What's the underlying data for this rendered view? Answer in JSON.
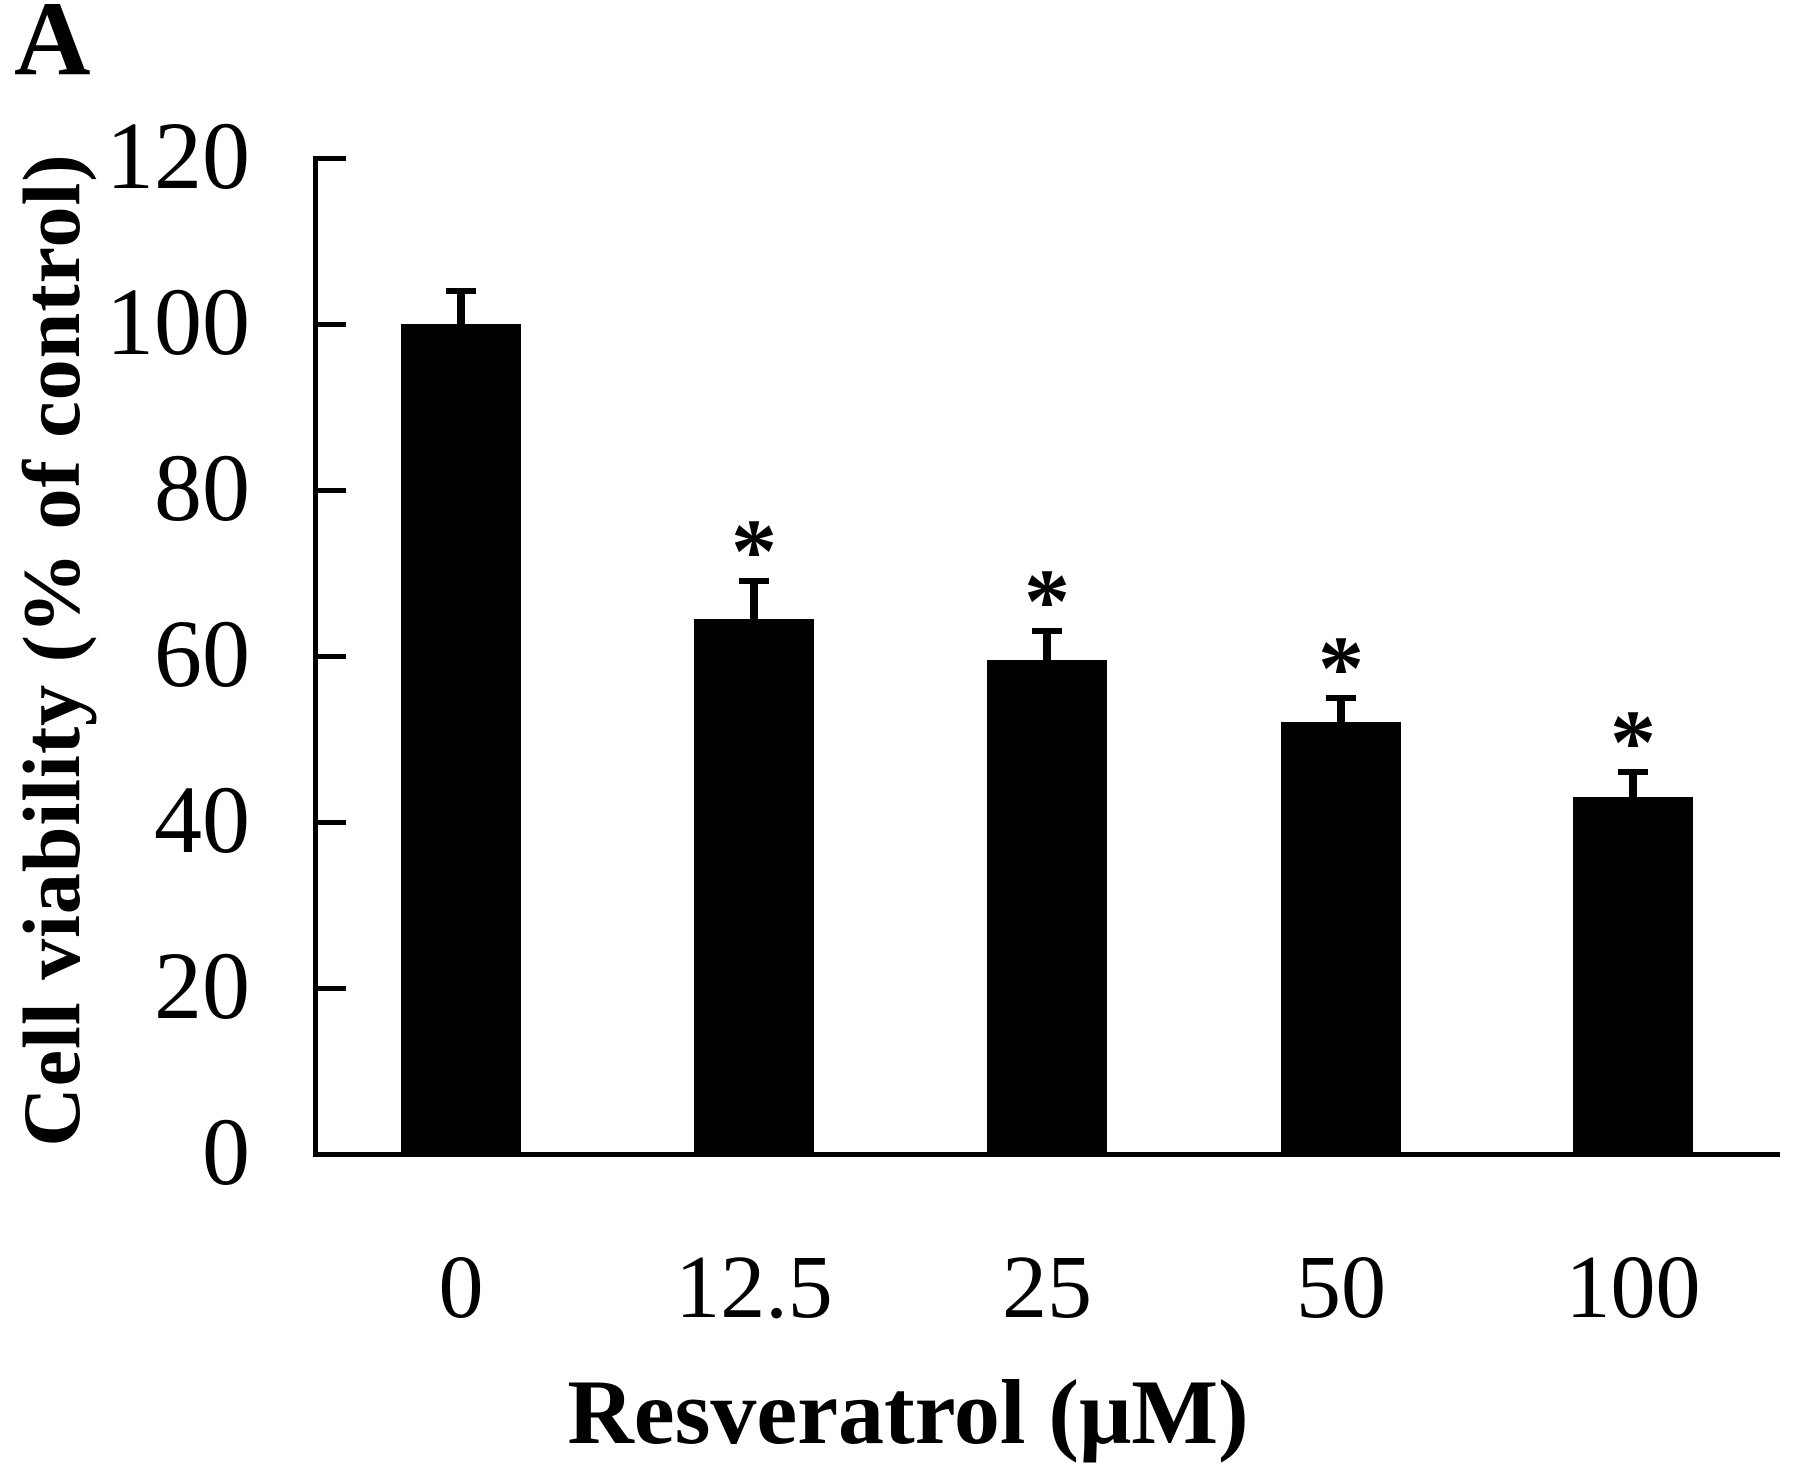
{
  "figure": {
    "panel_label": "A",
    "background": "#ffffff",
    "ink_color": "#000000"
  },
  "chart_data": {
    "type": "bar",
    "title": "",
    "panel_label": "A",
    "xlabel": "Resveratrol (μM)",
    "ylabel": "Cell viability (% of control)",
    "categories": [
      "0",
      "12.5",
      "25",
      "50",
      "100"
    ],
    "values": [
      100,
      64.5,
      59.5,
      52,
      43
    ],
    "error_bars_upper": [
      4,
      4.5,
      3.5,
      3,
      3
    ],
    "significance_markers": [
      "",
      "*",
      "*",
      "*",
      "*"
    ],
    "ylim": [
      0,
      120
    ],
    "yticks": [
      0,
      20,
      40,
      60,
      80,
      100,
      120
    ],
    "bar_color": "#000000",
    "background_color": "#ffffff",
    "grid": false,
    "legend": "none",
    "error_bar_style": "upper-with-cap",
    "tick_direction": "in"
  }
}
